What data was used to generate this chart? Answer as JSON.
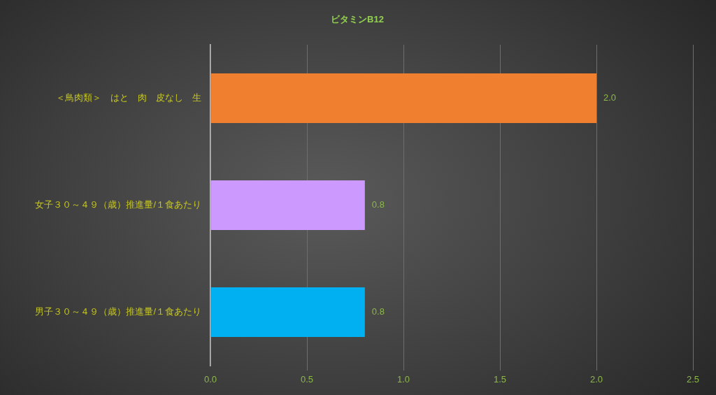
{
  "chart_data": {
    "type": "bar",
    "title": "ビタミンB12",
    "orientation": "horizontal",
    "categories": [
      "＜鳥肉類＞　はと　肉　皮なし　生",
      "女子３０～４９（歳）推進量/１食あたり",
      "男子３０～４９（歳）推進量/１食あたり"
    ],
    "values": [
      2.0,
      0.8,
      0.8
    ],
    "colors": [
      "#f07f2f",
      "#cc99ff",
      "#00b0f0"
    ],
    "value_labels": [
      "2.0",
      "0.8",
      "0.8"
    ],
    "xlim": [
      0,
      2.5
    ],
    "xticks": [
      {
        "value": 0,
        "label": "0.0"
      },
      0.5,
      {
        "value": 1,
        "label": "1.0"
      },
      1.5,
      {
        "value": 2,
        "label": "2.0"
      },
      2.5
    ],
    "grid": "x"
  }
}
